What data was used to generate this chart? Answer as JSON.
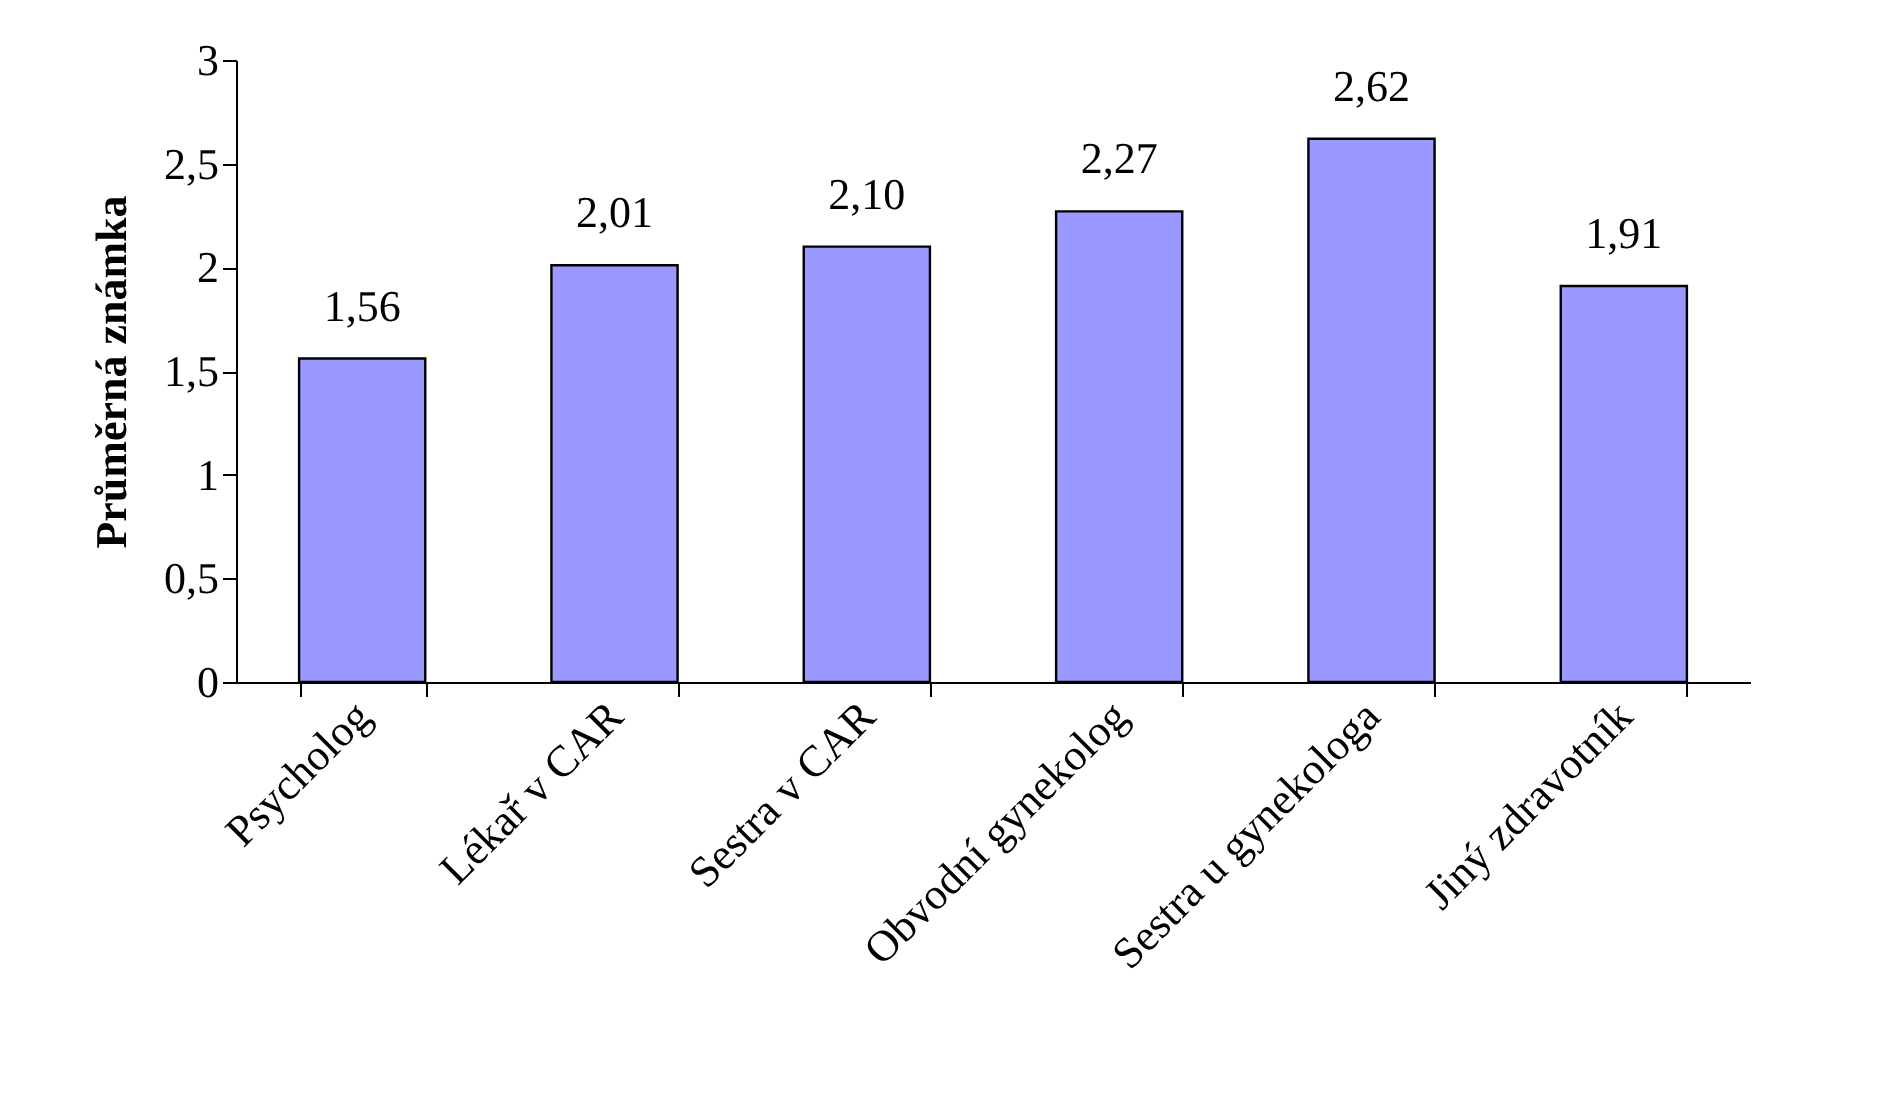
{
  "chart_data": {
    "type": "bar",
    "ylabel": "Průměrná známka",
    "categories": [
      "Psycholog",
      "Lékař v CAR",
      "Sestra v CAR",
      "Obvodní gynekolog",
      "Sestra u gynekologa",
      "Jiný zdravotník"
    ],
    "values": [
      1.56,
      2.01,
      2.1,
      2.27,
      2.62,
      1.91
    ],
    "value_labels": [
      "1,56",
      "2,01",
      "2,10",
      "2,27",
      "2,62",
      "1,91"
    ],
    "color": "#9999ff",
    "ylim": [
      0,
      3
    ],
    "yticks": [
      0,
      {
        "value": 0.5,
        "label": "0,5"
      },
      1,
      {
        "value": 1.5,
        "label": "1,5"
      },
      2,
      {
        "value": 2.5,
        "label": "2,5"
      },
      3
    ],
    "grid": false
  }
}
